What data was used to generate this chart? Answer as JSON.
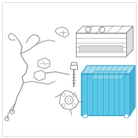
{
  "bg_color": "#ffffff",
  "border_color": "#cccccc",
  "tray_color": "#5bc8ea",
  "tray_stroke": "#2e9fc0",
  "tray_inner": "#a8dff0",
  "line_color": "#888888",
  "line_width": 0.7,
  "fig_width": 2.0,
  "fig_height": 2.0,
  "dpi": 100
}
